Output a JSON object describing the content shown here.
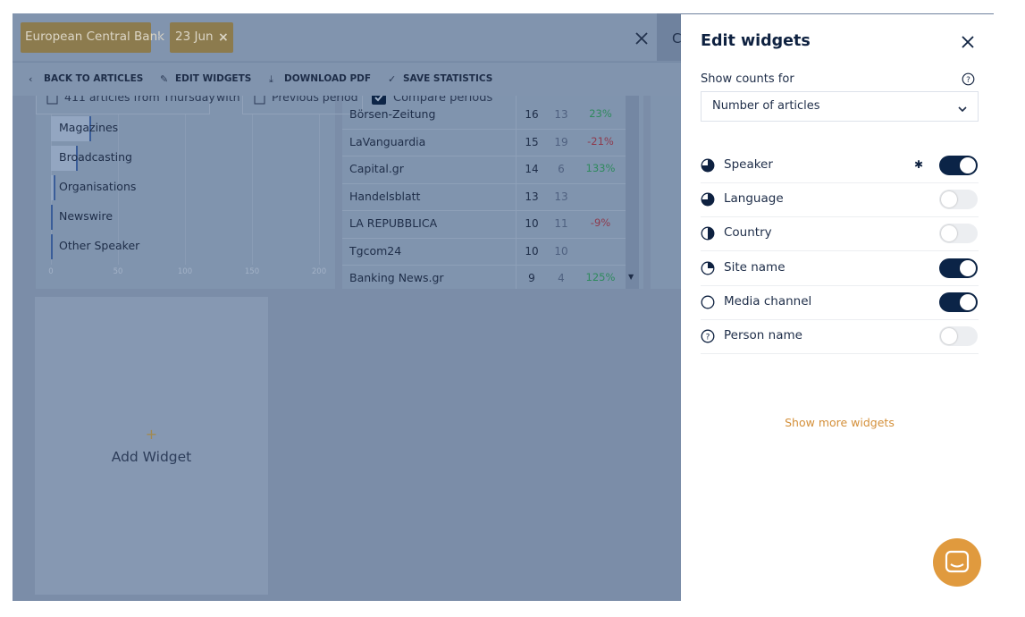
{
  "breadcrumbs": [
    "European Central Bank",
    "23 Jun"
  ],
  "chip_close": "×",
  "toolbar": [
    "BACK TO ARTICLES",
    "EDIT WIDGETS",
    "DOWNLOAD PDF",
    "SAVE STATISTICS"
  ],
  "filters": {
    "summary": "411 articles from Thursday",
    "joiner": "with",
    "period": "Previous period",
    "compare": "Compare periods"
  },
  "chart": {
    "categories": [
      "Magazines",
      "Broadcasting",
      "Organisations",
      "Newswire",
      "Other Speaker"
    ],
    "values": [
      30,
      20,
      3,
      1,
      1
    ],
    "xlim": [
      0,
      200
    ],
    "xticks": [
      0,
      50,
      100,
      150,
      200
    ]
  },
  "table": {
    "rows": [
      [
        "Börsen-Zeitung",
        "16",
        "13",
        "23%"
      ],
      [
        "LaVanguardia",
        "15",
        "19",
        "-21%"
      ],
      [
        "Capital.gr",
        "14",
        "6",
        "133%"
      ],
      [
        "Handelsblatt",
        "13",
        "13",
        null
      ],
      [
        "LA REPUBBLICA",
        "10",
        "11",
        "-9%"
      ],
      [
        "Tgcom24",
        "10",
        "10",
        null
      ],
      [
        "Banking News.gr",
        "9",
        "4",
        "125%"
      ]
    ]
  },
  "add_widget": {
    "icon": "+",
    "label": "Add Widget"
  },
  "panel": {
    "title": "Edit widgets",
    "counts_label": "Show counts for",
    "counts_value": "Number of articles",
    "items": [
      {
        "name": "Speaker",
        "on": true,
        "settings": true
      },
      {
        "name": "Language",
        "on": false
      },
      {
        "name": "Country",
        "on": false
      },
      {
        "name": "Site name",
        "on": true
      },
      {
        "name": "Media channel",
        "on": true
      },
      {
        "name": "Person name",
        "on": false
      }
    ],
    "more": "Show more widgets"
  }
}
